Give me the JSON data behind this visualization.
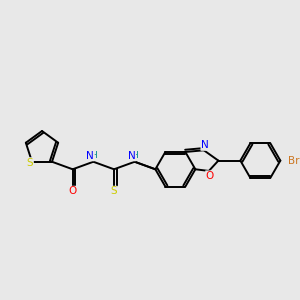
{
  "background_color": "#e8e8e8",
  "atom_colors": {
    "S": "#cccc00",
    "O": "#ff0000",
    "N": "#0000ff",
    "Br": "#cc7722",
    "C": "#000000",
    "H": "#008888"
  },
  "figsize": [
    3.0,
    3.0
  ],
  "dpi": 100
}
